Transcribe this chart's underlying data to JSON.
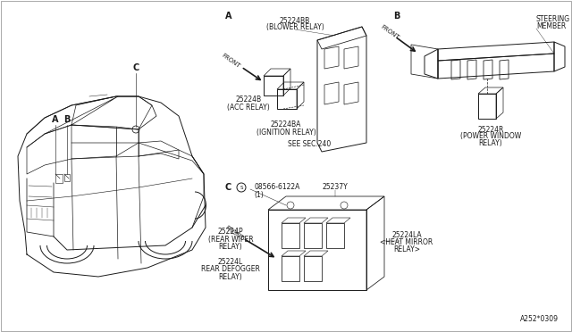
{
  "bg_color": "#ffffff",
  "line_color": "#1a1a1a",
  "text_color": "#1a1a1a",
  "fig_width": 6.4,
  "fig_height": 3.72,
  "dpi": 100,
  "part_number_A_blower": "25224BB",
  "label_A_blower": "(BLOWER RELAY)",
  "part_number_A_acc": "25224B",
  "label_A_acc": "(ACC RELAY)",
  "part_number_A_ignition": "25224BA",
  "label_A_ignition": "(IGNITION RELAY)",
  "see_sec": "SEE SEC.240",
  "part_number_B": "25224R",
  "label_B1": "(POWER WINDOW",
  "label_B2": "RELAY)",
  "label_B_steering1": "STEERING",
  "label_B_steering2": "MEMBER",
  "part_number_C_screw": "08566-6122A",
  "label_C_screw_sub": "(1)",
  "part_number_C_25237": "25237Y",
  "part_number_C_wiper": "25224P",
  "label_C_wiper1": "(REAR WIPER",
  "label_C_wiper2": "RELAY)",
  "part_number_C_defogger": "25224L",
  "label_C_defogger1": "REAR DEFOGGER",
  "label_C_defogger2": "RELAY)",
  "part_number_C_mirror": "25224LA",
  "label_C_mirror1": "<HEAT MIRROR",
  "label_C_mirror2": "RELAY>",
  "diagram_ref": "A252*0309",
  "label_A": "A",
  "label_B_letter": "B",
  "label_C_letter": "C",
  "label_front": "FRONT"
}
